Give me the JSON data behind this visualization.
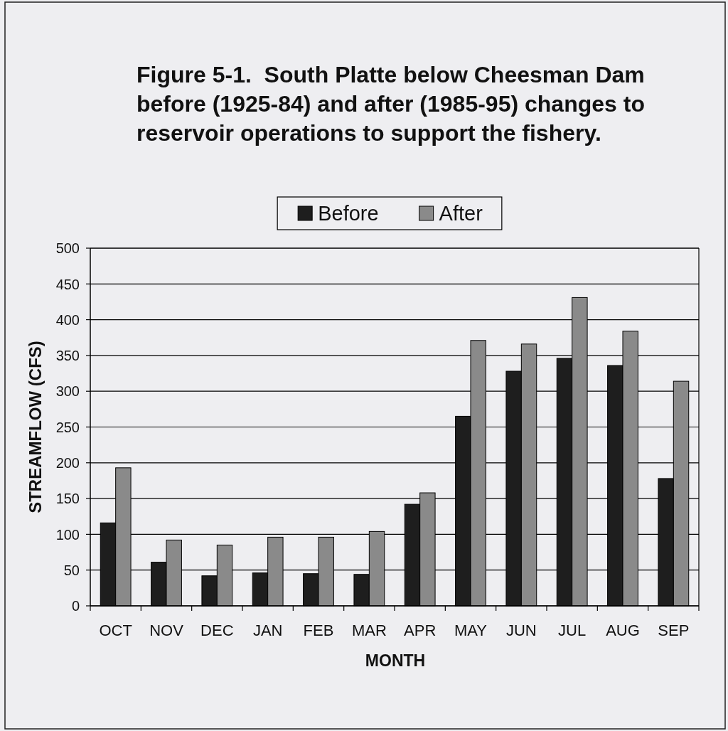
{
  "chart_data": {
    "type": "bar",
    "title": "Figure 5-1.  South Platte below Cheesman Dam before (1925-84) and after (1985-95) changes to reservoir operations to support the fishery.",
    "xlabel": "MONTH",
    "ylabel": "STREAMFLOW (CFS)",
    "categories": [
      "OCT",
      "NOV",
      "DEC",
      "JAN",
      "FEB",
      "MAR",
      "APR",
      "MAY",
      "JUN",
      "JUL",
      "AUG",
      "SEP"
    ],
    "series": [
      {
        "name": "Before",
        "color": "#1e1e1e",
        "values": [
          116,
          61,
          42,
          46,
          45,
          44,
          142,
          265,
          328,
          346,
          336,
          178
        ]
      },
      {
        "name": "After",
        "color": "#8a8a8a",
        "values": [
          193,
          92,
          85,
          96,
          96,
          104,
          158,
          371,
          366,
          431,
          384,
          314
        ]
      }
    ],
    "ylim": [
      0,
      500
    ],
    "yticks": [
      0,
      50,
      100,
      150,
      200,
      250,
      300,
      350,
      400,
      450,
      500
    ],
    "grid": "y",
    "legend": "top"
  }
}
